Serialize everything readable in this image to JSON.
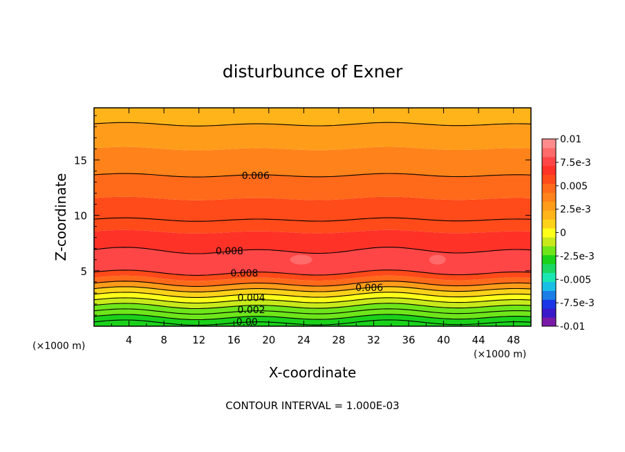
{
  "chart_data": {
    "type": "contour",
    "title": "disturbunce of Exner",
    "xlabel": "X-coordinate",
    "ylabel": "Z-coordinate",
    "x_unit": "(×1000 m)",
    "z_unit": "(×1000 m)",
    "xlim": [
      0,
      50
    ],
    "ylim": [
      0,
      19.7
    ],
    "x_ticks": [
      "4",
      "8",
      "12",
      "16",
      "20",
      "24",
      "28",
      "32",
      "36",
      "40",
      "44",
      "48"
    ],
    "y_ticks": [
      "5",
      "10",
      "15"
    ],
    "x_tick_values": [
      4,
      8,
      12,
      16,
      20,
      24,
      28,
      32,
      36,
      40,
      44,
      48
    ],
    "y_tick_values": [
      5,
      10,
      15
    ],
    "colorbar": {
      "labels": [
        "0.01",
        "7.5e-3",
        "0.005",
        "2.5e-3",
        "0",
        "-2.5e-3",
        "-0.005",
        "-7.5e-3",
        "-0.01"
      ],
      "range": [
        -0.01,
        0.01
      ]
    },
    "contour_levels": [
      {
        "z": 0.3,
        "value": 0.0
      },
      {
        "z": 0.8,
        "value": 0.001
      },
      {
        "z": 1.3,
        "value": 0.002
      },
      {
        "z": 1.8,
        "value": 0.003
      },
      {
        "z": 2.3,
        "value": 0.004
      },
      {
        "z": 2.8,
        "value": 0.005
      },
      {
        "z": 3.3,
        "value": 0.006
      },
      {
        "z": 3.8,
        "value": 0.007
      },
      {
        "z": 4.8,
        "value": 0.008
      },
      {
        "z": 6.8,
        "value": 0.008
      },
      {
        "z": 9.6,
        "value": 0.007
      },
      {
        "z": 13.6,
        "value": 0.006
      },
      {
        "z": 18.2,
        "value": 0.005
      }
    ],
    "contour_labels": [
      {
        "text": "0.006",
        "x": 18.5,
        "z": 13.6
      },
      {
        "text": "0.008",
        "x": 15.5,
        "z": 6.8
      },
      {
        "text": "0.008",
        "x": 17.2,
        "z": 4.8
      },
      {
        "text": "0.006",
        "x": 31.5,
        "z": 3.5
      },
      {
        "text": "0.004",
        "x": 18.0,
        "z": 2.6
      },
      {
        "text": "0.002",
        "x": 18.0,
        "z": 1.5
      },
      {
        "text": "0.00",
        "x": 17.5,
        "z": 0.4
      }
    ],
    "note": "CONTOUR INTERVAL = 1.000E-03"
  },
  "colors": {
    "palette": [
      "#7a1aa6",
      "#3a1ac8",
      "#1a36e6",
      "#1a7ee6",
      "#1abfe6",
      "#1ae6b3",
      "#1ad864",
      "#1ad21a",
      "#6ee61a",
      "#c8ea1a",
      "#ffff1a",
      "#ffd21a",
      "#ffb41a",
      "#ff9c1a",
      "#ff821a",
      "#ff6a1a",
      "#ff4a1a",
      "#ff3228",
      "#ff4646",
      "#ff6a6a",
      "#ff8c8c"
    ]
  }
}
